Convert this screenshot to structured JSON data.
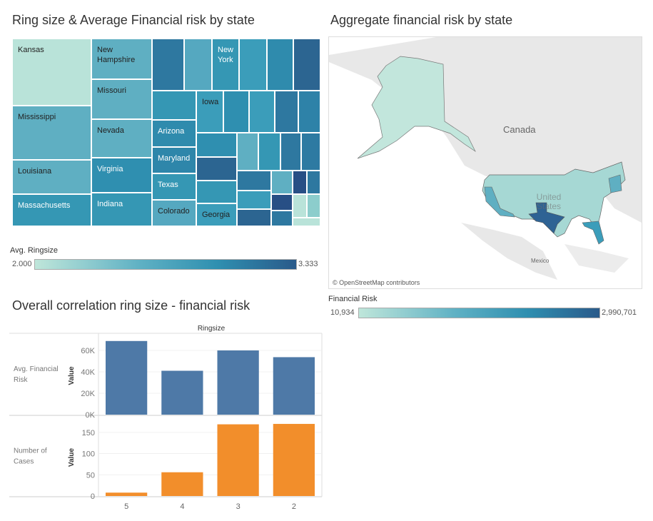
{
  "treemap": {
    "title": "Ring size & Average Financial risk by state",
    "labels": {
      "kansas": "Kansas",
      "mississippi": "Mississippi",
      "louisiana": "Louisiana",
      "massachusetts": "Massachusetts",
      "new_hampshire": "New Hampshire",
      "missouri": "Missouri",
      "nevada": "Nevada",
      "virginia": "Virginia",
      "indiana": "Indiana",
      "new_york": "New York",
      "iowa": "Iowa",
      "arizona": "Arizona",
      "maryland": "Maryland",
      "texas": "Texas",
      "colorado": "Colorado",
      "georgia": "Georgia"
    },
    "legend": {
      "title": "Avg. Ringsize",
      "min": "2.000",
      "max": "3.333"
    }
  },
  "map": {
    "title": "Aggregate financial risk by state",
    "labels": {
      "canada": "Canada",
      "mexico": "Mexico",
      "us": "United States"
    },
    "attribution": "© OpenStreetMap contributors",
    "legend": {
      "title": "Financial Risk",
      "min": "10,934",
      "max": "2,990,701"
    }
  },
  "correlation": {
    "title": "Overall correlation ring size - financial risk"
  },
  "chart_data": {
    "type": "bar",
    "title": "Overall correlation ring size - financial risk",
    "xlabel": "Ringsize",
    "categories": [
      "5",
      "4",
      "3",
      "2"
    ],
    "series": [
      {
        "name": "Avg. Financial Risk",
        "row_label": "Avg. Financial\nRisk",
        "ylabel": "Value",
        "color": "#4e79a7",
        "values": [
          68800,
          41000,
          60000,
          53700
        ],
        "ylim": [
          0,
          72000
        ],
        "ticks": [
          0,
          20000,
          40000,
          60000
        ],
        "tick_labels": [
          "0K",
          "20K",
          "40K",
          "60K"
        ]
      },
      {
        "name": "Number of Cases",
        "row_label": "Number of\nCases",
        "ylabel": "Value",
        "color": "#f28e2b",
        "values": [
          8,
          56,
          169,
          170
        ],
        "ylim": [
          0,
          180
        ],
        "ticks": [
          0,
          50,
          100,
          150
        ],
        "tick_labels": [
          "0",
          "50",
          "100",
          "150"
        ]
      }
    ]
  }
}
